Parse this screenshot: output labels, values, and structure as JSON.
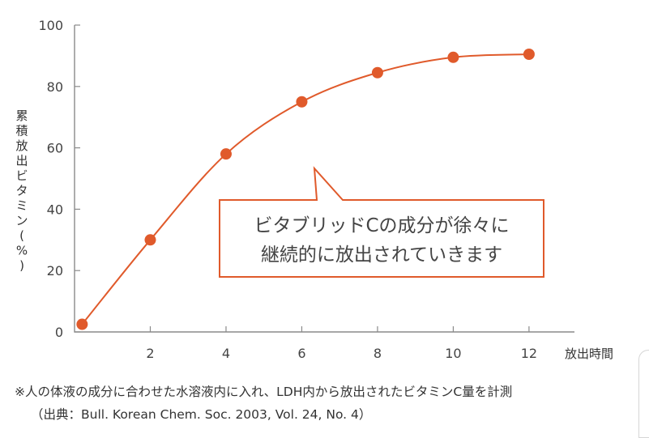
{
  "chart_data": {
    "type": "line",
    "x": [
      0.2,
      2,
      4,
      6,
      8,
      10,
      12
    ],
    "y": [
      2.5,
      30,
      58,
      75,
      84.5,
      89.5,
      90.5
    ],
    "xticks": [
      2,
      4,
      6,
      8,
      10,
      12
    ],
    "yticks": [
      0,
      20,
      40,
      60,
      80,
      100
    ],
    "xlim": [
      0,
      13.2
    ],
    "ylim": [
      0,
      100
    ],
    "xlabel": "放出時間",
    "ylabel": "累積放出ビタミン(%)",
    "grid": false,
    "smooth": true,
    "color": "#e05a2b",
    "annotation": {
      "lines": [
        "ビタブリッドCの成分が徐々に",
        "継続的に放出されていきます"
      ],
      "border_color": "#e05a2b"
    }
  },
  "footnotes": {
    "line1": "※人の体液の成分に合わせた水溶液内に入れ、LDH内から放出されたビタミンC量を計測",
    "line2": "（出典：Bull. Korean Chem. Soc. 2003, Vol. 24, No. 4）"
  }
}
